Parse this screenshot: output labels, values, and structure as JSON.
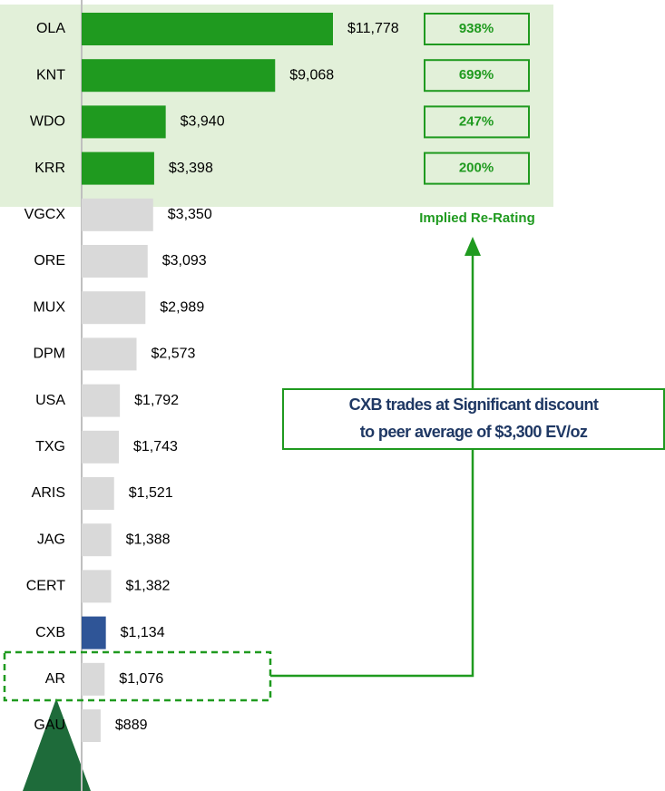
{
  "chart_data": {
    "type": "bar",
    "categories": [
      "OLA",
      "KNT",
      "WDO",
      "KRR",
      "VGCX",
      "ORE",
      "MUX",
      "DPM",
      "USA",
      "TXG",
      "ARIS",
      "JAG",
      "CERT",
      "CXB",
      "AR",
      "GAU"
    ],
    "values": [
      11778,
      9068,
      3940,
      3398,
      3350,
      3093,
      2989,
      2573,
      1792,
      1743,
      1521,
      1388,
      1382,
      1134,
      1076,
      889
    ],
    "value_labels": [
      "$11,778",
      "$9,068",
      "$3,940",
      "$3,398",
      "$3,350",
      "$3,093",
      "$2,989",
      "$2,573",
      "$1,792",
      "$1,743",
      "$1,521",
      "$1,388",
      "$1,382",
      "$1,134",
      "$1,076",
      "$889"
    ],
    "colors": [
      "#1f9a1f",
      "#1f9a1f",
      "#1f9a1f",
      "#1f9a1f",
      "#d9d9d9",
      "#d9d9d9",
      "#d9d9d9",
      "#d9d9d9",
      "#d9d9d9",
      "#d9d9d9",
      "#d9d9d9",
      "#d9d9d9",
      "#d9d9d9",
      "#2f5597",
      "#d9d9d9",
      "#d9d9d9"
    ],
    "re_rating": {
      "label": "Implied Re-Rating",
      "values": [
        938,
        699,
        247,
        200
      ],
      "value_labels": [
        "938%",
        "699%",
        "247%",
        "200%"
      ]
    },
    "annotation": [
      "CXB trades at Significant discount",
      "to peer average of $3,300 EV/oz"
    ]
  }
}
